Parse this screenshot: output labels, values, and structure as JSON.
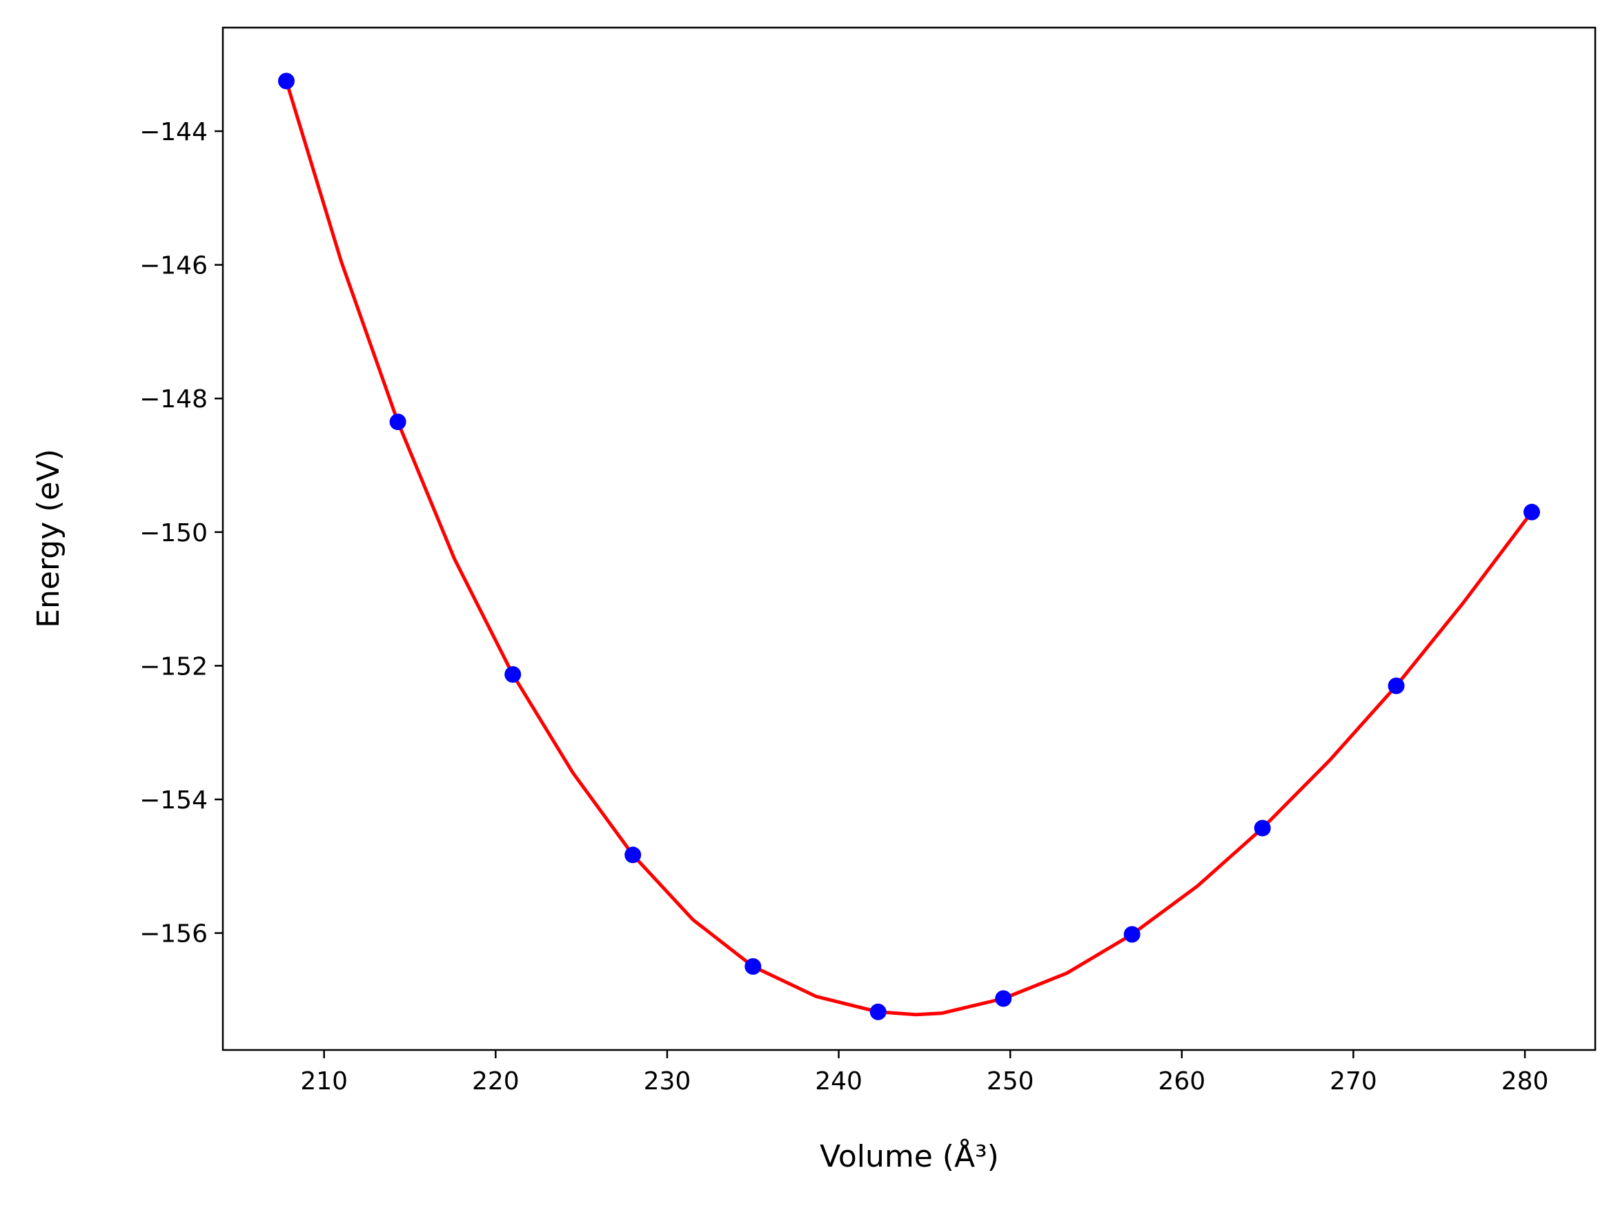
{
  "chart_data": {
    "type": "scatter",
    "xlabel": "Volume (Å³)",
    "ylabel": "Energy (eV)",
    "xlim": [
      204.1,
      284.1
    ],
    "ylim": [
      -157.75,
      -142.45
    ],
    "x_ticks": [
      210,
      220,
      230,
      240,
      250,
      260,
      270,
      280
    ],
    "x_tick_labels": [
      "210",
      "220",
      "230",
      "240",
      "250",
      "260",
      "270",
      "280"
    ],
    "y_ticks": [
      -144,
      -146,
      -148,
      -150,
      -152,
      -154,
      -156
    ],
    "y_tick_labels": [
      "−144",
      "−146",
      "−148",
      "−150",
      "−152",
      "−154",
      "−156"
    ],
    "grid": false,
    "series": [
      {
        "kind": "points",
        "color": "#0000ff",
        "x": [
          207.8,
          214.3,
          221.0,
          228.0,
          235.0,
          242.3,
          249.6,
          257.1,
          264.7,
          272.5,
          280.4
        ],
        "y": [
          -143.25,
          -148.35,
          -152.13,
          -154.83,
          -156.5,
          -157.18,
          -156.98,
          -156.02,
          -154.43,
          -152.3,
          -149.7
        ]
      },
      {
        "kind": "fit-line",
        "color": "#ff0000",
        "x": [
          207.8,
          211.0,
          214.3,
          217.6,
          221.0,
          224.5,
          228.0,
          231.5,
          235.0,
          238.7,
          242.3,
          244.5,
          246.0,
          249.6,
          253.3,
          257.1,
          260.9,
          264.7,
          268.6,
          272.5,
          276.4,
          280.4
        ],
        "y": [
          -143.25,
          -145.95,
          -148.35,
          -150.4,
          -152.13,
          -153.6,
          -154.83,
          -155.8,
          -156.5,
          -156.95,
          -157.18,
          -157.22,
          -157.2,
          -156.98,
          -156.6,
          -156.02,
          -155.3,
          -154.43,
          -153.42,
          -152.3,
          -151.06,
          -149.7
        ]
      }
    ]
  }
}
